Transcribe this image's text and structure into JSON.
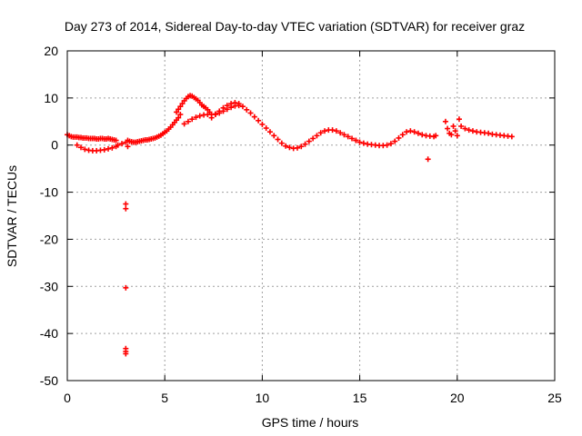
{
  "chart_data": {
    "type": "scatter",
    "title": "Day 273 of 2014, Sidereal Day-to-day VTEC variation (SDTVAR) for receiver graz",
    "xlabel": "GPS time / hours",
    "ylabel": "SDTVAR / TECUs",
    "xlim": [
      0,
      25
    ],
    "ylim": [
      -50,
      20
    ],
    "xticks": [
      0,
      5,
      10,
      15,
      20,
      25
    ],
    "yticks": [
      20,
      10,
      0,
      -10,
      -20,
      -30,
      -40,
      -50
    ],
    "xtick_labels": [
      "0",
      "5",
      "10",
      "15",
      "20",
      "25"
    ],
    "ytick_labels": [
      "20",
      "10",
      "0",
      "-10",
      "-20",
      "-30",
      "-40",
      "-50"
    ],
    "grid": true,
    "marker": "+",
    "color": "#ff0000",
    "series": [
      {
        "name": "graz",
        "x": [
          0.0,
          0.1,
          0.2,
          0.3,
          0.4,
          0.5,
          0.6,
          0.7,
          0.8,
          0.9,
          1.0,
          1.1,
          1.2,
          1.3,
          1.4,
          1.5,
          1.6,
          1.7,
          1.8,
          1.9,
          2.0,
          2.1,
          2.2,
          2.3,
          2.4,
          2.5,
          0.5,
          0.7,
          0.9,
          1.1,
          1.3,
          1.5,
          1.7,
          1.9,
          2.1,
          2.3,
          2.5,
          2.6,
          2.8,
          3.0,
          3.1,
          3.1,
          3.2,
          3.3,
          3.4,
          3.5,
          3.6,
          3.7,
          3.8,
          3.9,
          4.0,
          4.1,
          4.2,
          4.3,
          4.4,
          4.5,
          4.6,
          4.7,
          4.8,
          4.9,
          5.0,
          5.1,
          5.2,
          5.3,
          5.4,
          5.5,
          5.6,
          5.7,
          5.8,
          5.6,
          5.7,
          5.8,
          5.9,
          6.0,
          6.1,
          6.2,
          6.3,
          6.4,
          6.5,
          6.6,
          6.7,
          6.8,
          6.9,
          7.0,
          7.1,
          7.2,
          7.3,
          6.0,
          6.2,
          6.4,
          6.6,
          6.8,
          7.0,
          7.2,
          7.4,
          7.6,
          7.8,
          8.0,
          8.2,
          8.4,
          8.6,
          8.8,
          7.4,
          7.6,
          7.8,
          8.0,
          8.2,
          8.4,
          8.6,
          8.8,
          9.0,
          9.2,
          9.4,
          9.6,
          9.8,
          10.0,
          10.2,
          10.4,
          10.6,
          10.8,
          11.0,
          11.2,
          11.4,
          11.6,
          11.8,
          12.0,
          12.2,
          12.4,
          12.6,
          12.8,
          13.0,
          13.2,
          13.4,
          13.6,
          13.8,
          14.0,
          14.2,
          14.4,
          14.6,
          14.8,
          14.8,
          15.0,
          15.2,
          15.4,
          15.6,
          15.8,
          16.0,
          16.2,
          16.4,
          16.6,
          16.8,
          17.0,
          17.2,
          17.4,
          17.6,
          17.8,
          18.0,
          18.2,
          18.4,
          18.6,
          18.8,
          18.9,
          19.4,
          19.5,
          19.6,
          19.7,
          19.8,
          19.9,
          20.0,
          20.1,
          20.2,
          20.4,
          20.6,
          20.8,
          21.0,
          21.2,
          21.4,
          21.6,
          21.8,
          22.0,
          22.2,
          22.4,
          22.6,
          22.8,
          18.5,
          3.0,
          3.0,
          3.0,
          3.0,
          3.0,
          3.0
        ],
        "y": [
          2.2,
          2.0,
          1.8,
          1.7,
          1.7,
          1.7,
          1.6,
          1.6,
          1.5,
          1.5,
          1.5,
          1.4,
          1.4,
          1.4,
          1.4,
          1.3,
          1.3,
          1.4,
          1.4,
          1.3,
          1.3,
          1.4,
          1.3,
          1.2,
          1.1,
          1.0,
          0.0,
          -0.5,
          -0.9,
          -1.1,
          -1.2,
          -1.2,
          -1.1,
          -1.0,
          -0.8,
          -0.6,
          -0.3,
          0.0,
          0.3,
          0.6,
          -0.3,
          1.0,
          0.8,
          0.7,
          0.6,
          0.6,
          0.7,
          0.8,
          0.9,
          1.0,
          1.1,
          1.1,
          1.2,
          1.3,
          1.4,
          1.5,
          1.7,
          1.9,
          2.1,
          2.4,
          2.7,
          3.0,
          3.4,
          3.8,
          4.3,
          4.8,
          5.3,
          5.8,
          6.5,
          7.0,
          7.6,
          8.2,
          8.8,
          9.4,
          9.9,
          10.3,
          10.5,
          10.4,
          10.1,
          9.8,
          9.5,
          9.0,
          8.5,
          8.2,
          7.9,
          7.5,
          7.0,
          4.5,
          5.0,
          5.5,
          5.9,
          6.2,
          6.4,
          6.5,
          6.5,
          6.6,
          6.8,
          7.2,
          7.6,
          8.0,
          8.3,
          8.4,
          5.8,
          6.5,
          7.2,
          7.9,
          8.4,
          8.8,
          9.0,
          8.8,
          8.2,
          7.5,
          6.8,
          6.0,
          5.2,
          4.4,
          3.6,
          2.8,
          2.0,
          1.2,
          0.4,
          -0.2,
          -0.5,
          -0.7,
          -0.6,
          -0.3,
          0.2,
          0.8,
          1.4,
          2.0,
          2.6,
          3.0,
          3.2,
          3.2,
          3.0,
          2.6,
          2.2,
          1.8,
          1.4,
          1.0,
          1.0,
          0.6,
          0.4,
          0.2,
          0.1,
          0.0,
          -0.1,
          -0.1,
          0.0,
          0.3,
          0.8,
          1.5,
          2.2,
          2.8,
          3.0,
          2.8,
          2.5,
          2.2,
          2.0,
          1.9,
          1.8,
          2.0,
          5.0,
          3.5,
          2.5,
          2.2,
          4.0,
          3.0,
          2.0,
          5.5,
          4.0,
          3.5,
          3.2,
          3.0,
          2.8,
          2.7,
          2.6,
          2.5,
          2.3,
          2.2,
          2.1,
          2.0,
          1.9,
          1.8,
          -3.0,
          -12.5,
          -13.5,
          -30.3,
          -43.2,
          -43.8,
          -44.3
        ]
      }
    ]
  }
}
